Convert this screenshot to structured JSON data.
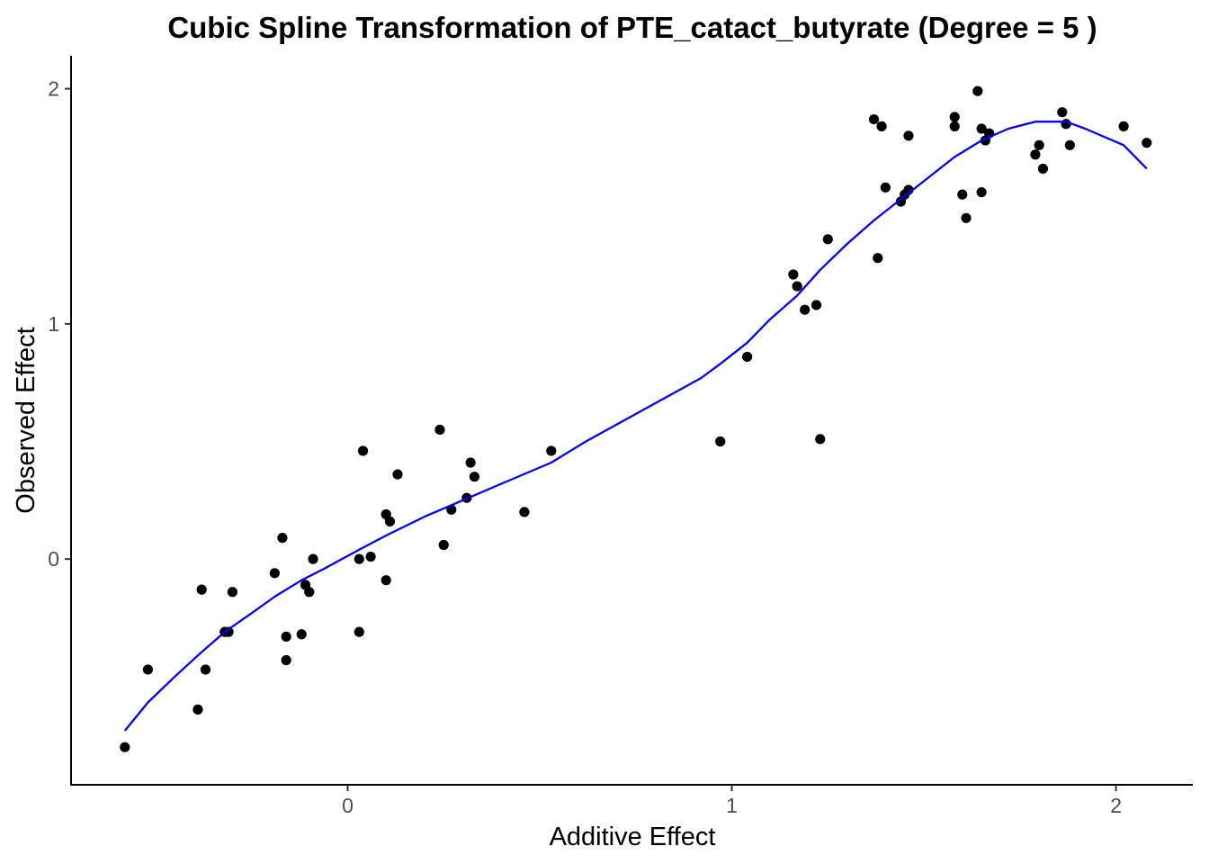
{
  "chart_data": {
    "type": "scatter",
    "title": "Cubic Spline Transformation of PTE_catact_butyrate (Degree = 5 )",
    "xlabel": "Additive Effect",
    "ylabel": "Observed Effect",
    "xlim": [
      -0.72,
      2.2
    ],
    "ylim": [
      -0.96,
      2.14
    ],
    "x_ticks": [
      0,
      1,
      2
    ],
    "x_tick_labels": [
      "0",
      "1",
      "2"
    ],
    "y_ticks": [
      0,
      1,
      2
    ],
    "y_tick_labels": [
      "0",
      "1",
      "2"
    ],
    "grid": false,
    "legend": "none",
    "colors": {
      "points": "#000000",
      "line": "#0000ff",
      "axis": "#000000",
      "ticks": "#333333",
      "tick_labels": "#4d4d4d"
    },
    "series": [
      {
        "type": "scatter",
        "x": [
          -0.58,
          -0.52,
          -0.39,
          -0.38,
          -0.37,
          -0.32,
          -0.31,
          -0.3,
          -0.19,
          -0.17,
          -0.16,
          -0.16,
          -0.12,
          -0.11,
          -0.1,
          -0.09,
          0.03,
          0.03,
          0.04,
          0.06,
          0.1,
          0.1,
          0.11,
          0.13,
          0.24,
          0.25,
          0.27,
          0.31,
          0.32,
          0.33,
          0.46,
          0.53,
          0.97,
          1.04,
          1.16,
          1.17,
          1.19,
          1.22,
          1.23,
          1.25,
          1.37,
          1.38,
          1.39,
          1.4,
          1.44,
          1.45,
          1.46,
          1.46,
          1.58,
          1.58,
          1.6,
          1.61,
          1.64,
          1.65,
          1.65,
          1.66,
          1.67,
          1.79,
          1.8,
          1.81,
          1.86,
          1.87,
          1.88,
          2.02,
          2.08
        ],
        "y": [
          -0.8,
          -0.47,
          -0.64,
          -0.13,
          -0.47,
          -0.31,
          -0.31,
          -0.14,
          -0.06,
          0.09,
          -0.33,
          -0.43,
          -0.32,
          -0.11,
          -0.14,
          0.0,
          0.0,
          -0.31,
          0.46,
          0.01,
          -0.09,
          0.19,
          0.16,
          0.36,
          0.55,
          0.06,
          0.21,
          0.26,
          0.41,
          0.35,
          0.2,
          0.46,
          0.5,
          0.86,
          1.21,
          1.16,
          1.06,
          1.08,
          0.51,
          1.36,
          1.87,
          1.28,
          1.84,
          1.58,
          1.52,
          1.55,
          1.57,
          1.8,
          1.88,
          1.84,
          1.55,
          1.45,
          1.99,
          1.83,
          1.56,
          1.78,
          1.81,
          1.72,
          1.76,
          1.66,
          1.9,
          1.85,
          1.76,
          1.84,
          1.77
        ]
      },
      {
        "type": "line",
        "x": [
          -0.58,
          -0.52,
          -0.45,
          -0.39,
          -0.32,
          -0.25,
          -0.19,
          -0.12,
          -0.06,
          0.03,
          0.1,
          0.2,
          0.3,
          0.4,
          0.53,
          0.62,
          0.72,
          0.82,
          0.92,
          0.97,
          1.04,
          1.1,
          1.17,
          1.23,
          1.3,
          1.37,
          1.44,
          1.51,
          1.58,
          1.65,
          1.72,
          1.79,
          1.83,
          1.87,
          1.92,
          2.02,
          2.08
        ],
        "y": [
          -0.73,
          -0.61,
          -0.5,
          -0.41,
          -0.31,
          -0.23,
          -0.16,
          -0.09,
          -0.04,
          0.04,
          0.1,
          0.18,
          0.25,
          0.32,
          0.41,
          0.5,
          0.59,
          0.68,
          0.77,
          0.83,
          0.92,
          1.02,
          1.12,
          1.23,
          1.34,
          1.44,
          1.53,
          1.62,
          1.71,
          1.78,
          1.83,
          1.86,
          1.86,
          1.86,
          1.83,
          1.76,
          1.66
        ]
      }
    ]
  }
}
